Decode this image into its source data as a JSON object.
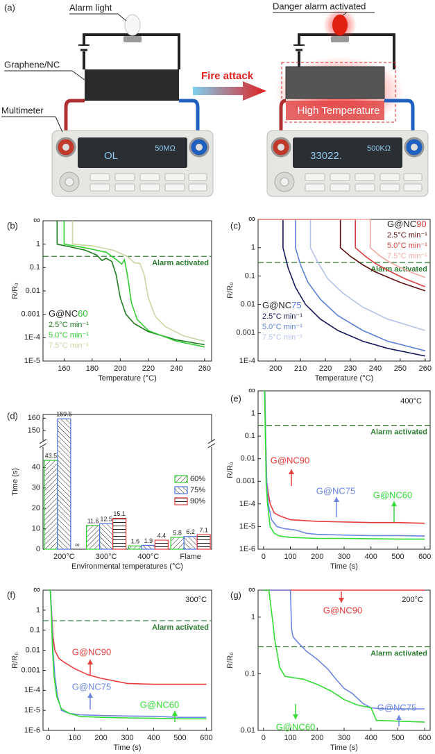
{
  "diagram": {
    "panel_label": "(a)",
    "alarm_light": "Alarm light",
    "material": "Graphene/NC",
    "multimeter": "Multimeter",
    "arrow_label": "Fire attack",
    "danger_label": "Danger alarm activated",
    "heat_label": "High Temperature",
    "display_left": [
      "OL",
      "50MΩ"
    ],
    "display_right": [
      "33022.",
      "500KΩ"
    ]
  },
  "chart_data": [
    {
      "type": "line",
      "panel_label": "(b)",
      "xlabel": "Temperature (°C)",
      "ylabel": "R/R₀",
      "log_y": true,
      "xlim": [
        145,
        265
      ],
      "xticks": [
        160,
        180,
        200,
        220,
        240,
        260
      ],
      "ylim": [
        1e-05,
        10
      ],
      "yticks": [
        {
          "value": 1e-05,
          "label": "1E-5"
        },
        {
          "value": 0.0001,
          "label": "1E-4"
        },
        0.001,
        0.01,
        0.1,
        1,
        {
          "value": 10,
          "label": "∞"
        }
      ],
      "alarm_level": 0.3,
      "alarm_label": "Alarm activated",
      "legend_groups": [
        {
          "prefix": "G@NC",
          "suffix": "60",
          "color": "#2fbf2f"
        }
      ],
      "series": [
        {
          "name": "2.5°C min⁻¹",
          "color": "#1e7b1e",
          "x": [
            155,
            155,
            165,
            175,
            183,
            187,
            190,
            194,
            197,
            200,
            204,
            210,
            220,
            240,
            260
          ],
          "values": [
            10,
            1,
            0.75,
            0.55,
            0.35,
            0.2,
            0.25,
            0.18,
            0.05,
            0.005,
            0.001,
            0.0004,
            0.00018,
            8e-05,
            5e-05
          ]
        },
        {
          "name": "5.0°C min⁻¹",
          "color": "#33cc33",
          "x": [
            160,
            160,
            175,
            190,
            198,
            201,
            203,
            205,
            208,
            212,
            220,
            240,
            260
          ],
          "values": [
            10,
            1,
            0.7,
            0.45,
            0.2,
            0.14,
            0.22,
            0.05,
            0.003,
            0.0006,
            0.0002,
            7e-05,
            4e-05
          ]
        },
        {
          "name": "7.5°C min⁻¹",
          "color": "#c9d7a5",
          "x": [
            166,
            166,
            180,
            195,
            205,
            210,
            214,
            217,
            220,
            225,
            232,
            245,
            260
          ],
          "values": [
            10,
            1,
            0.85,
            0.55,
            0.3,
            0.16,
            0.15,
            0.05,
            0.005,
            0.0008,
            0.0003,
            0.00012,
            7e-05
          ]
        }
      ]
    },
    {
      "type": "line",
      "panel_label": "(c)",
      "xlabel": "Temperature (°C)",
      "ylabel": "R/R₀",
      "log_y": true,
      "xlim": [
        193,
        262
      ],
      "xticks": [
        200,
        210,
        220,
        230,
        240,
        250,
        260
      ],
      "ylim": [
        0.0001,
        10
      ],
      "yticks": [
        {
          "value": 0.0001,
          "label": "1E-4"
        },
        0.001,
        0.01,
        0.1,
        1,
        {
          "value": 10,
          "label": "∞"
        }
      ],
      "alarm_level": 0.3,
      "alarm_label": "Alarm activated",
      "legend_groups": [
        {
          "prefix": "G@NC",
          "suffix": "75",
          "color": "#5a7fd8"
        },
        {
          "prefix": "G@NC",
          "suffix": "90",
          "color": "#d9403f"
        }
      ],
      "series": [
        {
          "name": "2.5°C min⁻¹",
          "color": "#15185c",
          "x": [
            203,
            203,
            205,
            208,
            212,
            218,
            225,
            235,
            245,
            260
          ],
          "values": [
            10,
            1,
            0.2,
            0.04,
            0.01,
            0.003,
            0.0012,
            0.0005,
            0.00028,
            0.00015
          ]
        },
        {
          "name": "5.0°C min⁻¹",
          "color": "#5a7fd8",
          "x": [
            208,
            208,
            210,
            213,
            218,
            225,
            235,
            245,
            260
          ],
          "values": [
            10,
            1,
            0.25,
            0.06,
            0.015,
            0.004,
            0.0012,
            0.0005,
            0.00023
          ]
        },
        {
          "name": "7.5°C min⁻¹",
          "color": "#b5c3ea",
          "x": [
            214,
            214,
            217,
            221,
            227,
            235,
            245,
            260
          ],
          "values": [
            10,
            1,
            0.3,
            0.08,
            0.025,
            0.008,
            0.003,
            0.0012
          ]
        },
        {
          "name": "2.5°C min⁻¹",
          "color": "#5c0d0d",
          "x": [
            193,
            226,
            226,
            230,
            235,
            240,
            250,
            260
          ],
          "values": [
            10,
            10,
            1,
            0.5,
            0.25,
            0.14,
            0.06,
            0.03
          ]
        },
        {
          "name": "5.0°C min⁻¹",
          "color": "#d9403f",
          "x": [
            193,
            232,
            232,
            236,
            240,
            245,
            252,
            260
          ],
          "values": [
            10,
            10,
            1,
            0.5,
            0.28,
            0.16,
            0.08,
            0.042
          ]
        },
        {
          "name": "7.5°C min⁻¹",
          "color": "#f2a7a2",
          "x": [
            193,
            238,
            238,
            242,
            246,
            250,
            255,
            260
          ],
          "values": [
            10,
            10,
            1,
            0.5,
            0.3,
            0.2,
            0.13,
            0.09
          ]
        }
      ]
    },
    {
      "type": "bar",
      "panel_label": "(d)",
      "xlabel": "Environmental temperatures (°C)",
      "ylabel": "Time (s)",
      "categories": [
        "200°C",
        "300°C",
        "400°C",
        "Flame"
      ],
      "ylim": [
        0,
        163
      ],
      "y_break": [
        46,
        148
      ],
      "yticks": [
        0,
        10,
        20,
        30,
        40,
        150,
        160
      ],
      "series": [
        {
          "name": "60%",
          "color": "#33cc33",
          "values": [
            43.5,
            11.6,
            1.6,
            5.8
          ]
        },
        {
          "name": "75%",
          "color": "#4a6fe0",
          "values": [
            159.5,
            12.5,
            1.9,
            6.2
          ]
        },
        {
          "name": "90%",
          "color": "#e03a3a",
          "values": [
            null,
            15.1,
            4.4,
            7.1
          ],
          "value_labels": [
            "∞",
            "15.1",
            "4.4",
            "7.1"
          ]
        }
      ]
    },
    {
      "type": "line",
      "panel_label": "(e)",
      "annotation": "400°C",
      "xlabel": "Time (s)",
      "ylabel": "R/R₀",
      "log_y": true,
      "xlim": [
        -20,
        620
      ],
      "xticks": [
        0,
        100,
        200,
        300,
        400,
        500,
        600
      ],
      "ylim": [
        1e-06,
        10
      ],
      "yticks": [
        {
          "value": 1e-06,
          "label": "1E-6"
        },
        {
          "value": 1e-05,
          "label": "1E-5"
        },
        {
          "value": 0.0001,
          "label": "1E-4"
        },
        0.001,
        0.01,
        0.1,
        1,
        {
          "value": 10,
          "label": "∞"
        }
      ],
      "alarm_level": 0.3,
      "alarm_label": "Alarm activated",
      "series": [
        {
          "name": "G@NC90",
          "color": "#e83b3b",
          "x": [
            0,
            5,
            8,
            12,
            18,
            25,
            40,
            60,
            100,
            200,
            300,
            400,
            500,
            600
          ],
          "values": [
            10,
            10,
            0.1,
            0.001,
            0.0003,
            0.0001,
            4e-05,
            3e-05,
            2e-05,
            1.7e-05,
            1.6e-05,
            1.5e-05,
            1.5e-05,
            1.4e-05
          ]
        },
        {
          "name": "G@NC75",
          "color": "#6d86e0",
          "x": [
            0,
            5,
            8,
            12,
            18,
            30,
            50,
            80,
            120,
            160,
            200,
            300,
            400,
            500,
            600
          ],
          "values": [
            10,
            10,
            0.1,
            0.001,
            0.0001,
            2e-05,
            1e-05,
            8e-06,
            7e-06,
            5e-06,
            4.5e-06,
            4.2e-06,
            4e-06,
            4e-06,
            3.8e-06
          ]
        },
        {
          "name": "G@NC60",
          "color": "#33dd33",
          "x": [
            0,
            4,
            7,
            10,
            15,
            25,
            40,
            60,
            100,
            200,
            300,
            400,
            500,
            600
          ],
          "values": [
            10,
            10,
            0.1,
            0.001,
            0.0001,
            1e-05,
            5e-06,
            3.8e-06,
            3.3e-06,
            3e-06,
            3e-06,
            2.9e-06,
            2.8e-06,
            2.8e-06
          ]
        }
      ]
    },
    {
      "type": "line",
      "panel_label": "(f)",
      "annotation": "300°C",
      "xlabel": "Time (s)",
      "ylabel": "R/R₀",
      "log_y": true,
      "xlim": [
        -20,
        620
      ],
      "xticks": [
        0,
        100,
        200,
        300,
        400,
        500,
        600
      ],
      "ylim": [
        1e-06,
        10
      ],
      "yticks": [
        {
          "value": 1e-06,
          "label": "1E-6"
        },
        {
          "value": 1e-05,
          "label": "1E-5"
        },
        {
          "value": 0.0001,
          "label": "1E-4"
        },
        0.001,
        0.01,
        0.1,
        1,
        {
          "value": 10,
          "label": "∞"
        }
      ],
      "alarm_level": 0.3,
      "alarm_label": "Alarm activated",
      "series": [
        {
          "name": "G@NC90",
          "color": "#e83b3b",
          "x": [
            0,
            8,
            12,
            18,
            25,
            40,
            60,
            100,
            150,
            200,
            300,
            400,
            500,
            600
          ],
          "values": [
            10,
            10,
            1,
            0.05,
            0.01,
            0.004,
            0.0025,
            0.0012,
            0.0006,
            0.0004,
            0.00022,
            0.0002,
            0.0002,
            0.0002
          ]
        },
        {
          "name": "G@NC75",
          "color": "#6d86e0",
          "x": [
            0,
            8,
            12,
            18,
            25,
            35,
            50,
            80,
            120,
            200,
            300,
            400,
            500,
            600
          ],
          "values": [
            10,
            10,
            1,
            0.01,
            0.0005,
            5e-05,
            1e-05,
            7e-06,
            6e-06,
            5.5e-06,
            5.2e-06,
            5e-06,
            4.5e-06,
            4.5e-06
          ]
        },
        {
          "name": "G@NC60",
          "color": "#33dd33",
          "x": [
            0,
            7,
            11,
            16,
            22,
            32,
            50,
            80,
            120,
            200,
            300,
            400,
            500,
            600
          ],
          "values": [
            10,
            10,
            1,
            0.01,
            0.0005,
            5e-05,
            1.2e-05,
            7e-06,
            5e-06,
            4.5e-06,
            4.2e-06,
            4e-06,
            3.8e-06,
            3.8e-06
          ]
        }
      ]
    },
    {
      "type": "line",
      "panel_label": "(g)",
      "annotation": "200°C",
      "xlabel": "Time (s)",
      "ylabel": "R/R₀",
      "log_y": true,
      "xlim": [
        -20,
        620
      ],
      "xticks": [
        0,
        100,
        200,
        300,
        400,
        500,
        600
      ],
      "ylim": [
        0.01,
        3
      ],
      "yticks": [
        0.01,
        0.1,
        1,
        {
          "value": 3,
          "label": "∞"
        }
      ],
      "alarm_level": 0.3,
      "alarm_label": "Alarm activated",
      "series": [
        {
          "name": "G@NC90",
          "color": "#e83b3b",
          "x": [
            0,
            600
          ],
          "values": [
            3,
            3
          ]
        },
        {
          "name": "G@NC75",
          "color": "#6d86e0",
          "x": [
            0,
            100,
            105,
            110,
            130,
            160,
            200,
            240,
            270,
            300,
            330,
            370,
            400,
            450,
            600
          ],
          "values": [
            3,
            3,
            0.6,
            0.45,
            0.35,
            0.25,
            0.18,
            0.12,
            0.08,
            0.055,
            0.045,
            0.03,
            0.025,
            0.024,
            0.024
          ]
        },
        {
          "name": "G@NC60",
          "color": "#33dd33",
          "x": [
            0,
            20,
            35,
            42,
            50,
            60,
            80,
            150,
            200,
            250,
            300,
            350,
            400,
            420,
            600
          ],
          "values": [
            3,
            3,
            0.8,
            0.4,
            0.25,
            0.13,
            0.09,
            0.08,
            0.065,
            0.05,
            0.035,
            0.028,
            0.025,
            0.015,
            0.014
          ]
        }
      ]
    }
  ]
}
